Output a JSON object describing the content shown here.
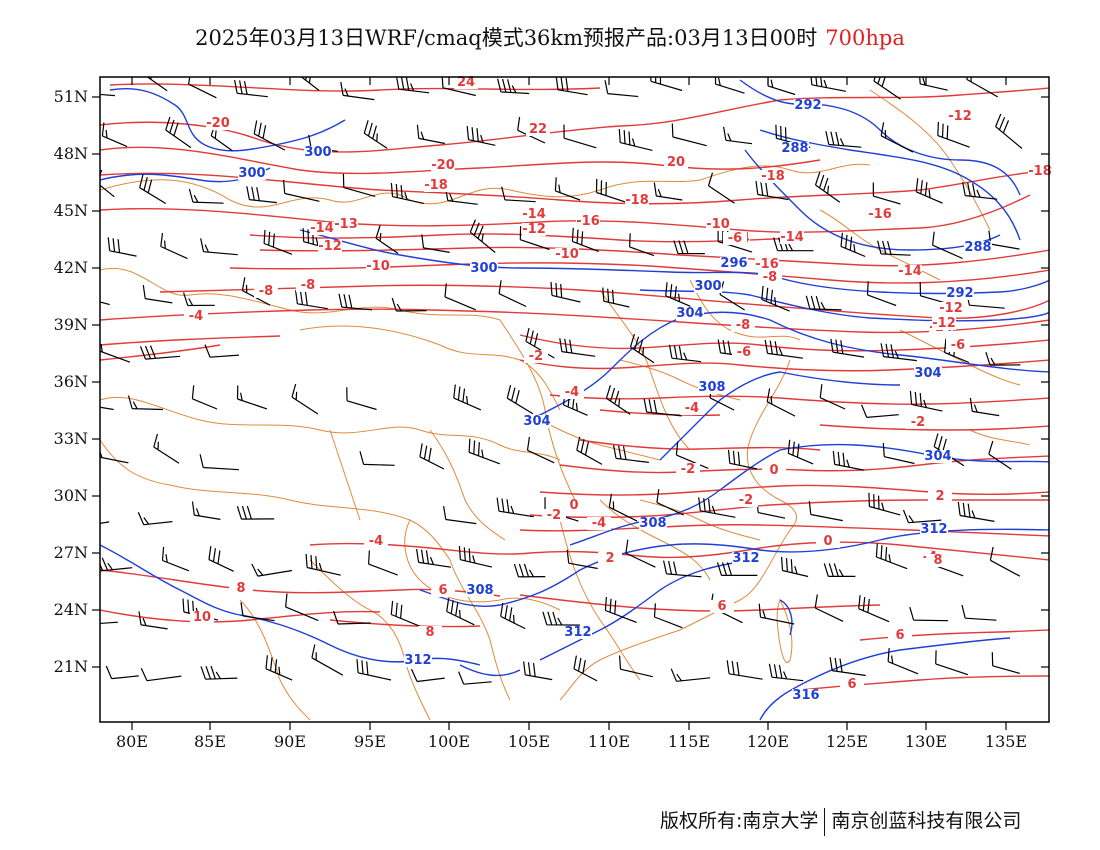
{
  "header": {
    "title": "2025年03月13日WRF/cmaq模式36km预报产品:03月13日00时",
    "level": "700hpa"
  },
  "axes": {
    "lat_labels": [
      "51N",
      "48N",
      "45N",
      "42N",
      "39N",
      "36N",
      "33N",
      "30N",
      "27N",
      "24N",
      "21N"
    ],
    "lon_labels": [
      "80E",
      "85E",
      "90E",
      "95E",
      "100E",
      "105E",
      "110E",
      "115E",
      "120E",
      "125E",
      "130E",
      "135E"
    ]
  },
  "contour_labels": {
    "temperature": [
      "24",
      "-20",
      "22",
      "-20",
      "-18",
      "20",
      "-18",
      "-18",
      "-16",
      "-14",
      "-14",
      "-13",
      "-12",
      "-14",
      "-16",
      "-12",
      "-10",
      "-10",
      "-8",
      "-8",
      "-8",
      "-6",
      "-14",
      "-16",
      "-12",
      "-18",
      "-14",
      "-14",
      "-12",
      "-12",
      "-10",
      "-8",
      "-6",
      "-4",
      "-2",
      "-4",
      "-4",
      "-8",
      "-6",
      "-2",
      "0",
      "-2",
      "-2",
      "0",
      "-2",
      "2",
      "-4",
      "-4",
      "0",
      "2",
      "-4",
      "6",
      "6",
      "6",
      "8",
      "10",
      "8",
      "6",
      "8"
    ],
    "geopotential": [
      "292",
      "300",
      "300",
      "288",
      "288",
      "300",
      "296",
      "300",
      "292",
      "304",
      "304",
      "308",
      "304",
      "304",
      "308",
      "312",
      "312",
      "308",
      "312",
      "312",
      "316"
    ]
  },
  "colors": {
    "temperature": "#e23a3a",
    "geopotential": "#1f3fd6",
    "boundaries": "#e08a3c",
    "wind": "#000000"
  },
  "footer": {
    "left": "版权所有:南京大学",
    "right": "南京创蓝科技有限公司"
  }
}
